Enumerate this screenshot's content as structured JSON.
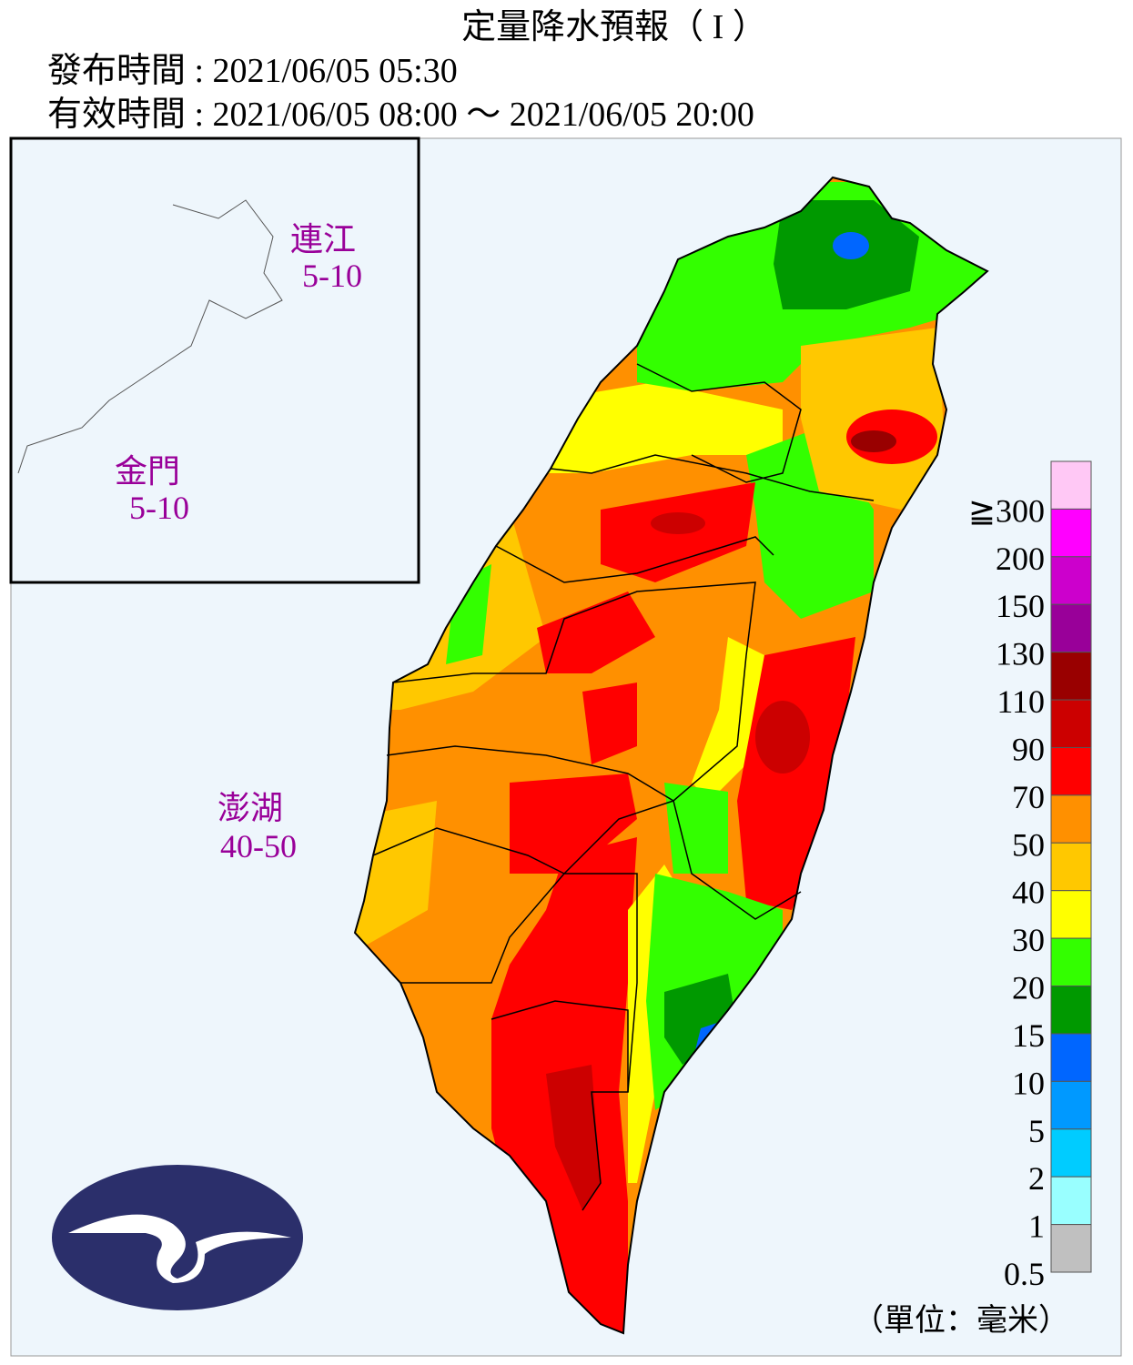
{
  "header": {
    "title": "定量降水預報（ I ）",
    "issued": "發布時間 : 2021/06/05 05:30",
    "valid": "有效時間 : 2021/06/05 08:00 ～ 2021/06/05 20:00"
  },
  "regions": [
    {
      "name": "連江",
      "range": "5-10"
    },
    {
      "name": "金門",
      "range": "5-10"
    },
    {
      "name": "澎湖",
      "range": "40-50"
    }
  ],
  "legend": {
    "items": [
      {
        "label": "≧300",
        "color": "#ffc8f5"
      },
      {
        "label": "200",
        "color": "#ff00ff"
      },
      {
        "label": "150",
        "color": "#cc00cc"
      },
      {
        "label": "130",
        "color": "#990099"
      },
      {
        "label": "110",
        "color": "#990000"
      },
      {
        "label": "90",
        "color": "#cc0000"
      },
      {
        "label": "70",
        "color": "#ff0000"
      },
      {
        "label": "50",
        "color": "#ff9000"
      },
      {
        "label": "40",
        "color": "#ffc800"
      },
      {
        "label": "30",
        "color": "#ffff00"
      },
      {
        "label": "20",
        "color": "#33ff00"
      },
      {
        "label": "15",
        "color": "#009900"
      },
      {
        "label": "10",
        "color": "#0066ff"
      },
      {
        "label": "5",
        "color": "#0099ff"
      },
      {
        "label": "2",
        "color": "#00ccff"
      },
      {
        "label": "1",
        "color": "#99ffff"
      },
      {
        "label": "0.5",
        "color": "#c0c0c0"
      }
    ],
    "unit": "（單位：毫米）"
  }
}
